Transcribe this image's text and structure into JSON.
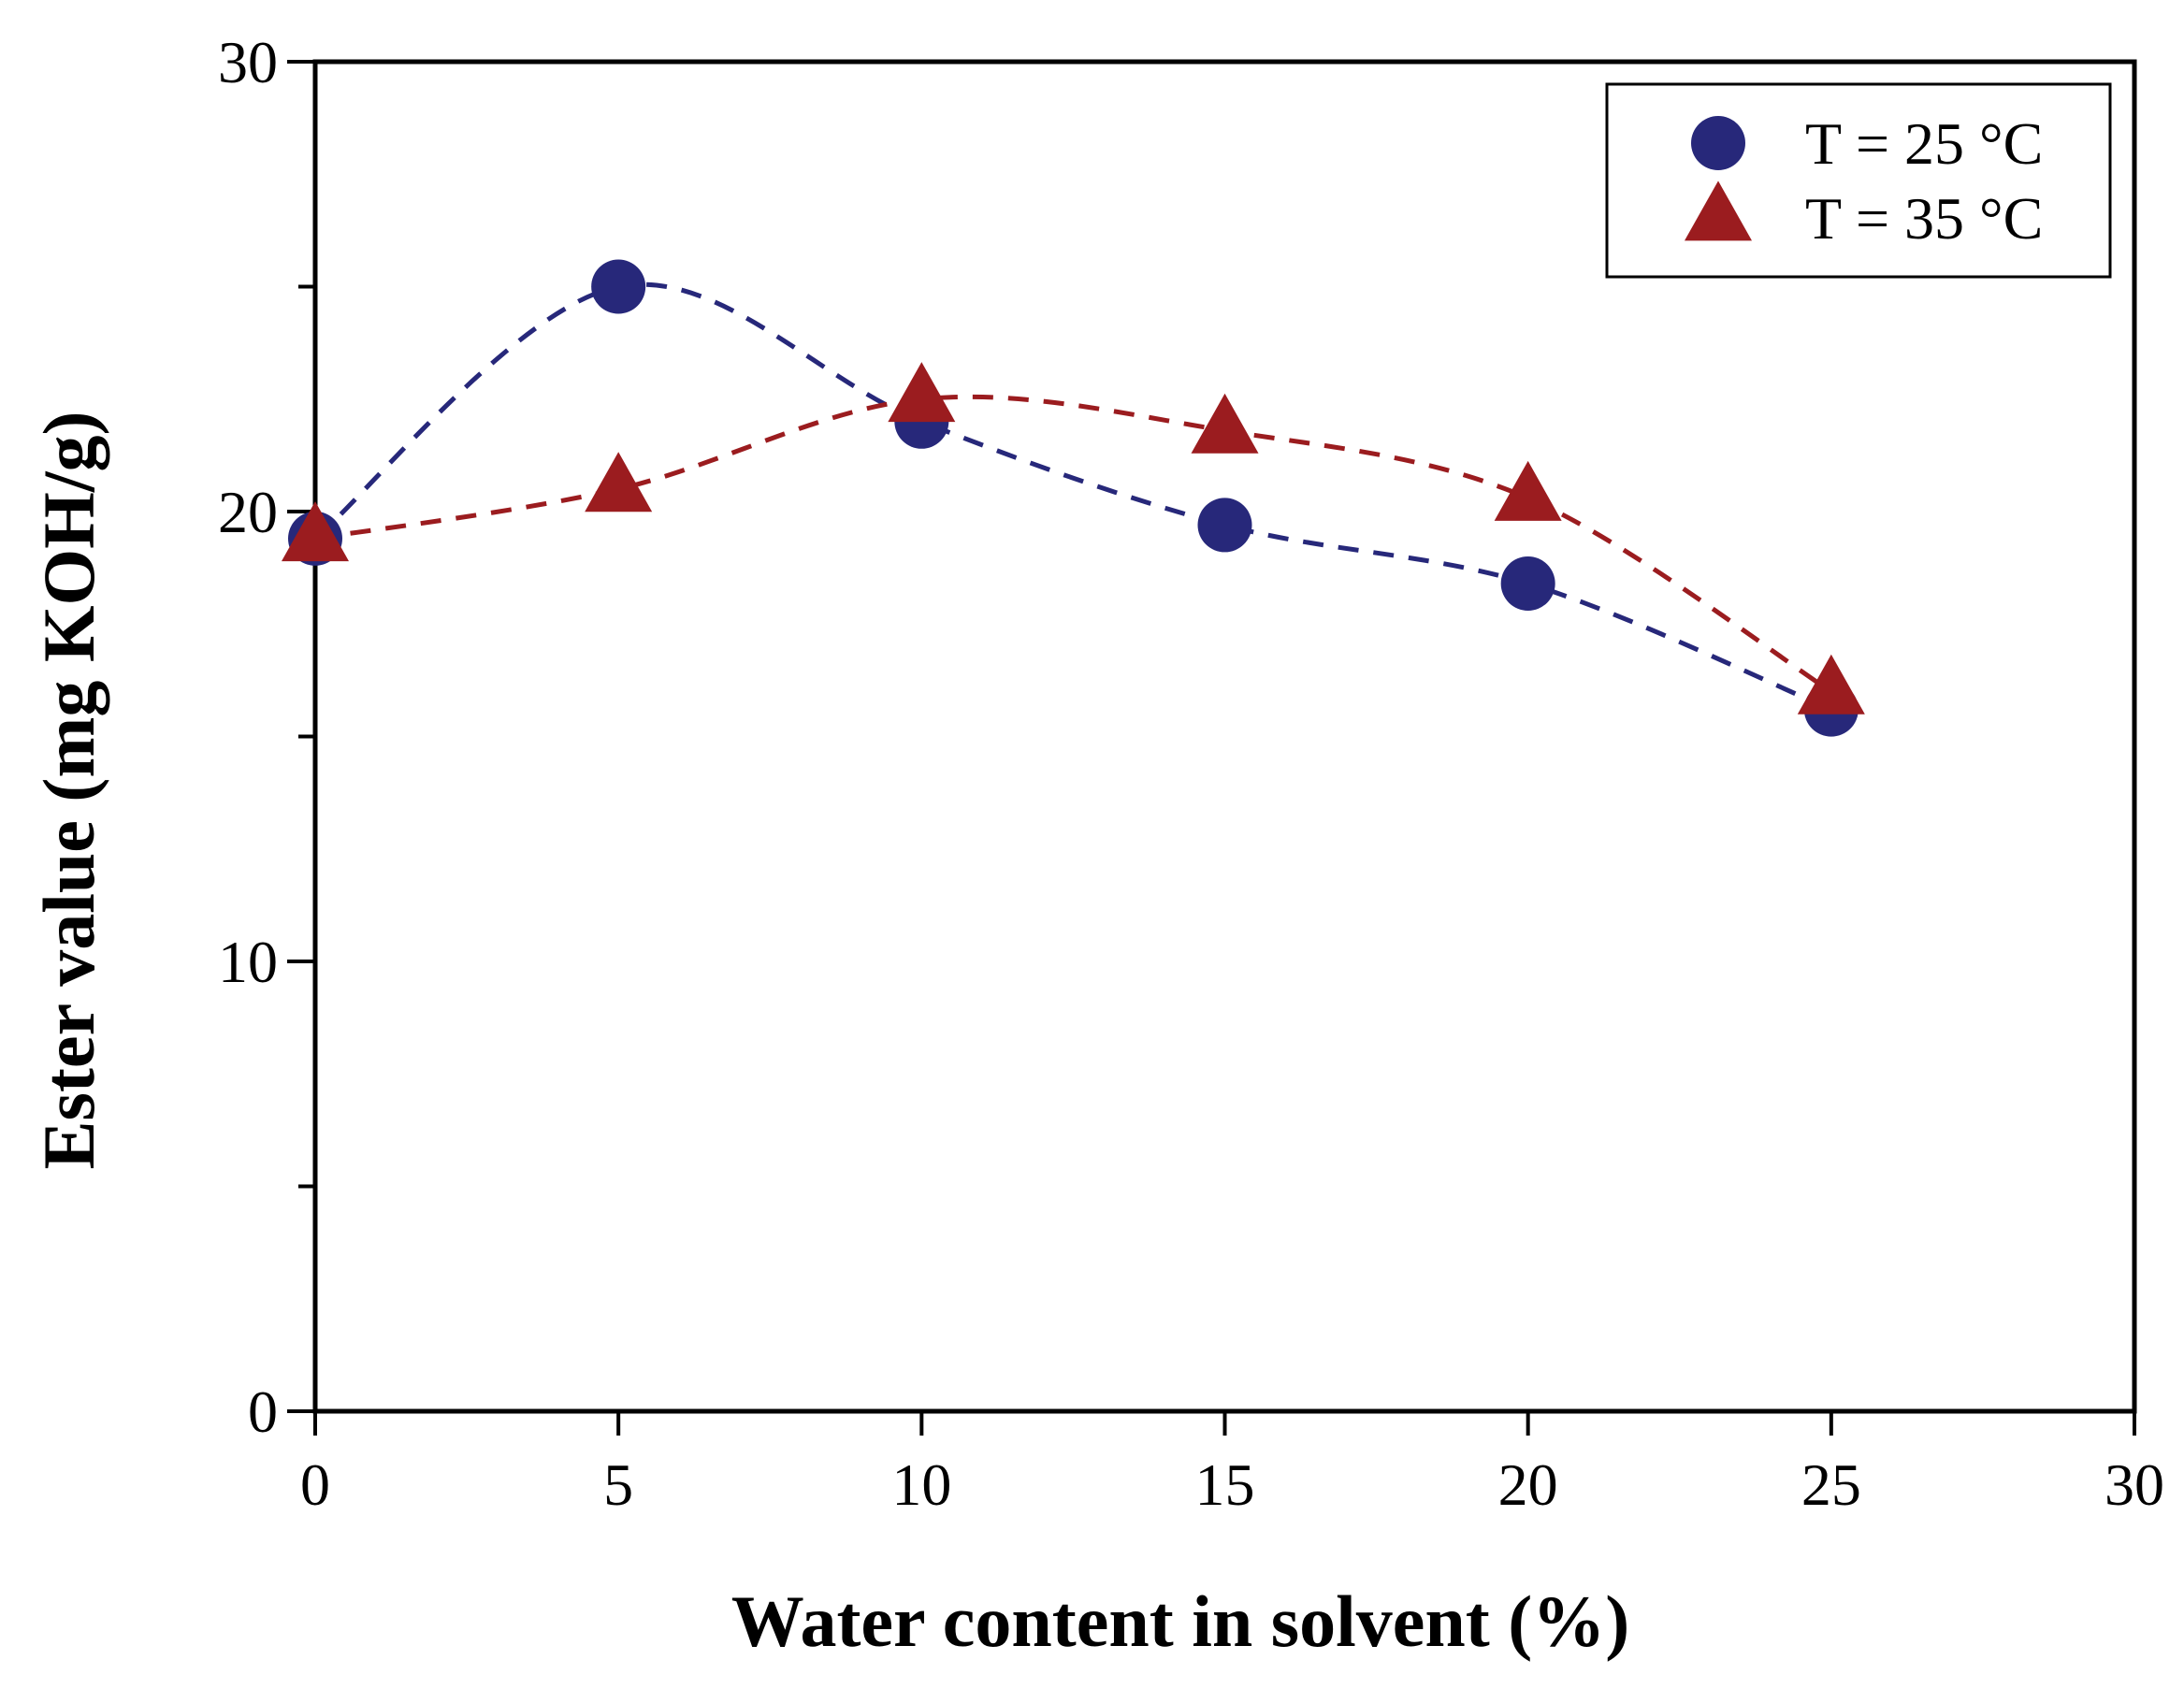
{
  "chart_data": {
    "type": "scatter",
    "title": "",
    "xlabel": "Water content in solvent (%)",
    "ylabel": "Ester value (mg KOH/g)",
    "xlim": [
      0,
      30
    ],
    "ylim": [
      0,
      30
    ],
    "xticks": [
      0,
      5,
      10,
      15,
      20,
      25,
      30
    ],
    "yticks": [
      0,
      10,
      20,
      30
    ],
    "yminor_ticks": [
      5,
      15,
      25
    ],
    "grid": false,
    "legend_position": "top-right",
    "series": [
      {
        "name": "T = 25 °C",
        "marker": "circle",
        "color": "#27287a",
        "fit_line": "dashed",
        "x": [
          0,
          5,
          10,
          15,
          20,
          25
        ],
        "y": [
          19.4,
          25.0,
          22.0,
          19.7,
          18.4,
          15.6
        ]
      },
      {
        "name": "T = 35 °C",
        "marker": "triangle",
        "color": "#9b1c1f",
        "fit_line": "dashed",
        "x": [
          0,
          5,
          10,
          15,
          20,
          25
        ],
        "y": [
          19.4,
          20.5,
          22.5,
          21.8,
          20.3,
          16.0
        ]
      }
    ]
  }
}
